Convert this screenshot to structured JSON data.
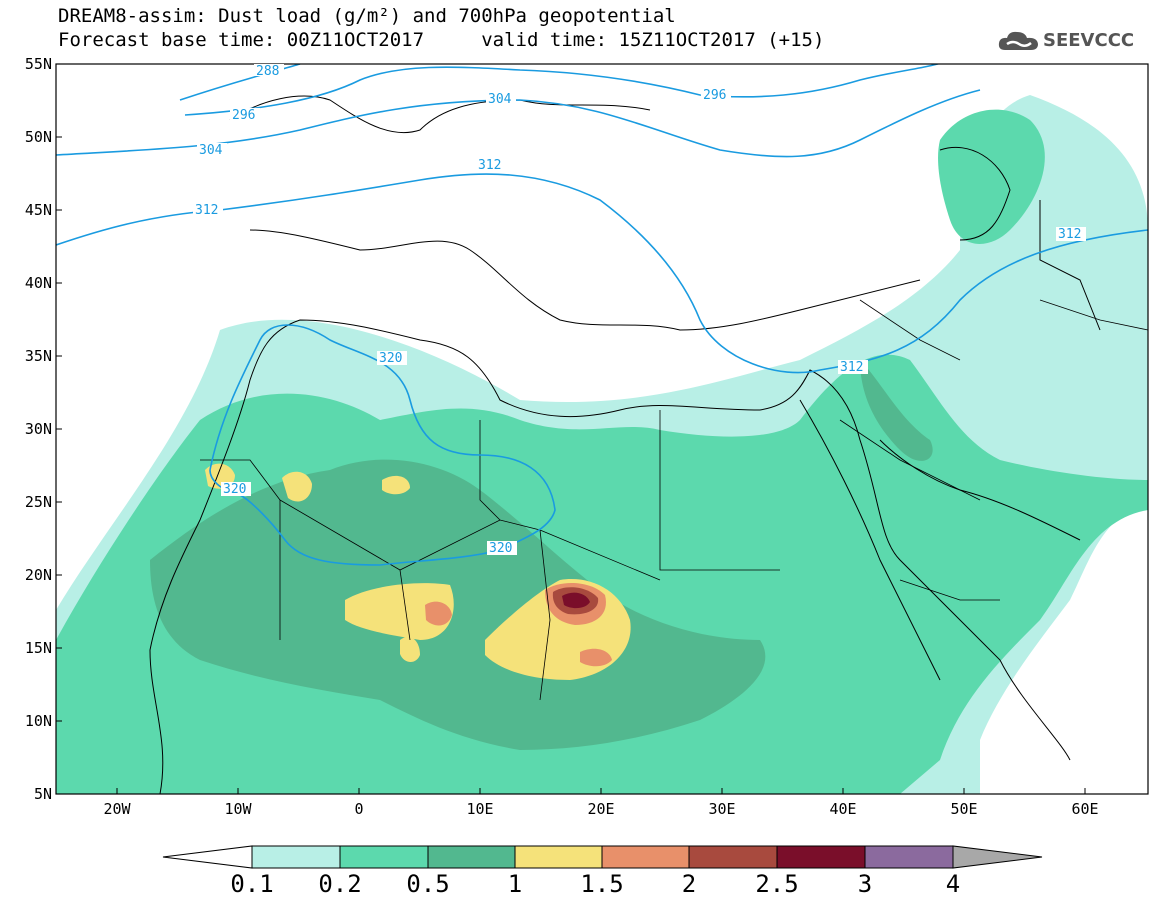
{
  "header": {
    "title_line1": "DREAM8-assim: Dust load (g/m²) and 700hPa geopotential",
    "title_line2": "Forecast base time: 00Z11OCT2017     valid time: 15Z11OCT2017 (+15)",
    "logo_text": "SEEVCCC"
  },
  "axes": {
    "lat_labels": [
      "55N",
      "50N",
      "45N",
      "40N",
      "35N",
      "30N",
      "25N",
      "20N",
      "15N",
      "10N",
      "5N"
    ],
    "lon_labels": [
      "20W",
      "10W",
      "0",
      "10E",
      "20E",
      "30E",
      "40E",
      "50E",
      "60E"
    ]
  },
  "contours": {
    "color": "#1a9be0",
    "labels": [
      "288",
      "296",
      "304",
      "312",
      "296",
      "304",
      "312",
      "320",
      "320",
      "320",
      "312",
      "312"
    ]
  },
  "colorbar": {
    "labels": [
      "0.1",
      "0.2",
      "0.5",
      "1",
      "1.5",
      "2",
      "2.5",
      "3",
      "4"
    ],
    "colors": [
      "#b8efe6",
      "#5cd9ad",
      "#52b88f",
      "#f5e27a",
      "#e8906a",
      "#a84a3e",
      "#7a0e2a",
      "#8b6a9e",
      "#a8a8a8"
    ]
  }
}
